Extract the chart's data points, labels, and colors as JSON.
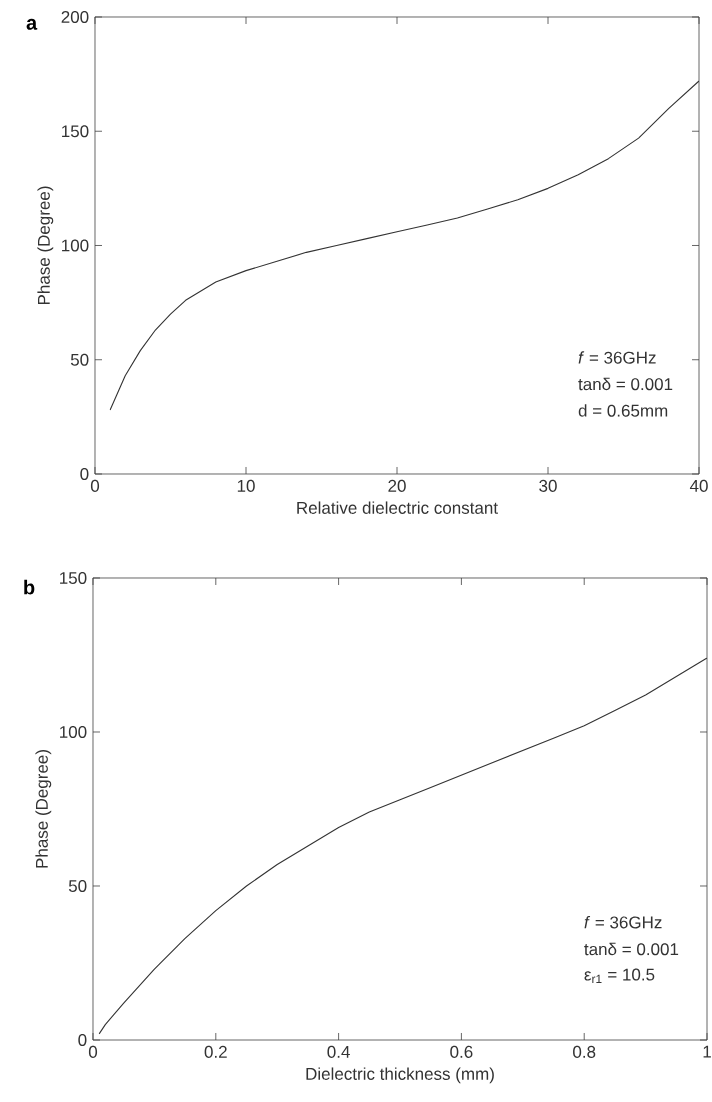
{
  "chart_data": [
    {
      "type": "line",
      "title": "a",
      "xlabel": "Relative dielectric constant",
      "ylabel": "Phase (Degree)",
      "xlim": [
        0,
        40
      ],
      "ylim": [
        0,
        200
      ],
      "xticks": [
        0,
        10,
        20,
        30,
        40
      ],
      "yticks": [
        0,
        50,
        100,
        150,
        200
      ],
      "grid": false,
      "line_style": "solid",
      "annotations": [
        "*f* = 36GHz",
        "tanδ = 0.001",
        "d = 0.65mm"
      ],
      "series": [
        {
          "color": "#333333",
          "x": [
            1,
            2,
            3,
            4,
            5,
            6,
            7,
            8,
            10,
            12,
            14,
            16,
            18,
            20,
            22,
            24,
            26,
            28,
            30,
            32,
            34,
            36,
            38,
            40
          ],
          "values": [
            28,
            43,
            54,
            63,
            70,
            76,
            80,
            84,
            89,
            93,
            97,
            100,
            103,
            106,
            109,
            112,
            116,
            120,
            125,
            131,
            138,
            147,
            160,
            172
          ]
        }
      ]
    },
    {
      "type": "line",
      "title": "b",
      "xlabel": "Dielectric thickness (mm)",
      "ylabel": "Phase (Degree)",
      "xlim": [
        0,
        1
      ],
      "ylim": [
        0,
        150
      ],
      "xticks": [
        0,
        0.2,
        0.4,
        0.6,
        0.8,
        1
      ],
      "yticks": [
        0,
        50,
        100,
        150
      ],
      "grid": false,
      "line_style": "solid",
      "annotations": [
        "*f* = 36GHz",
        "tanδ = 0.001",
        "ε$_{r1}$ = 10.5"
      ],
      "series": [
        {
          "color": "#333333",
          "x": [
            0.01,
            0.02,
            0.05,
            0.1,
            0.15,
            0.2,
            0.25,
            0.3,
            0.35,
            0.4,
            0.45,
            0.5,
            0.55,
            0.6,
            0.65,
            0.7,
            0.75,
            0.8,
            0.85,
            0.9,
            0.95,
            1.0
          ],
          "values": [
            2,
            5,
            12,
            23,
            33,
            42,
            50,
            57,
            63,
            69,
            74,
            78,
            82,
            86,
            90,
            94,
            98,
            102,
            107,
            112,
            118,
            124
          ]
        }
      ]
    }
  ]
}
